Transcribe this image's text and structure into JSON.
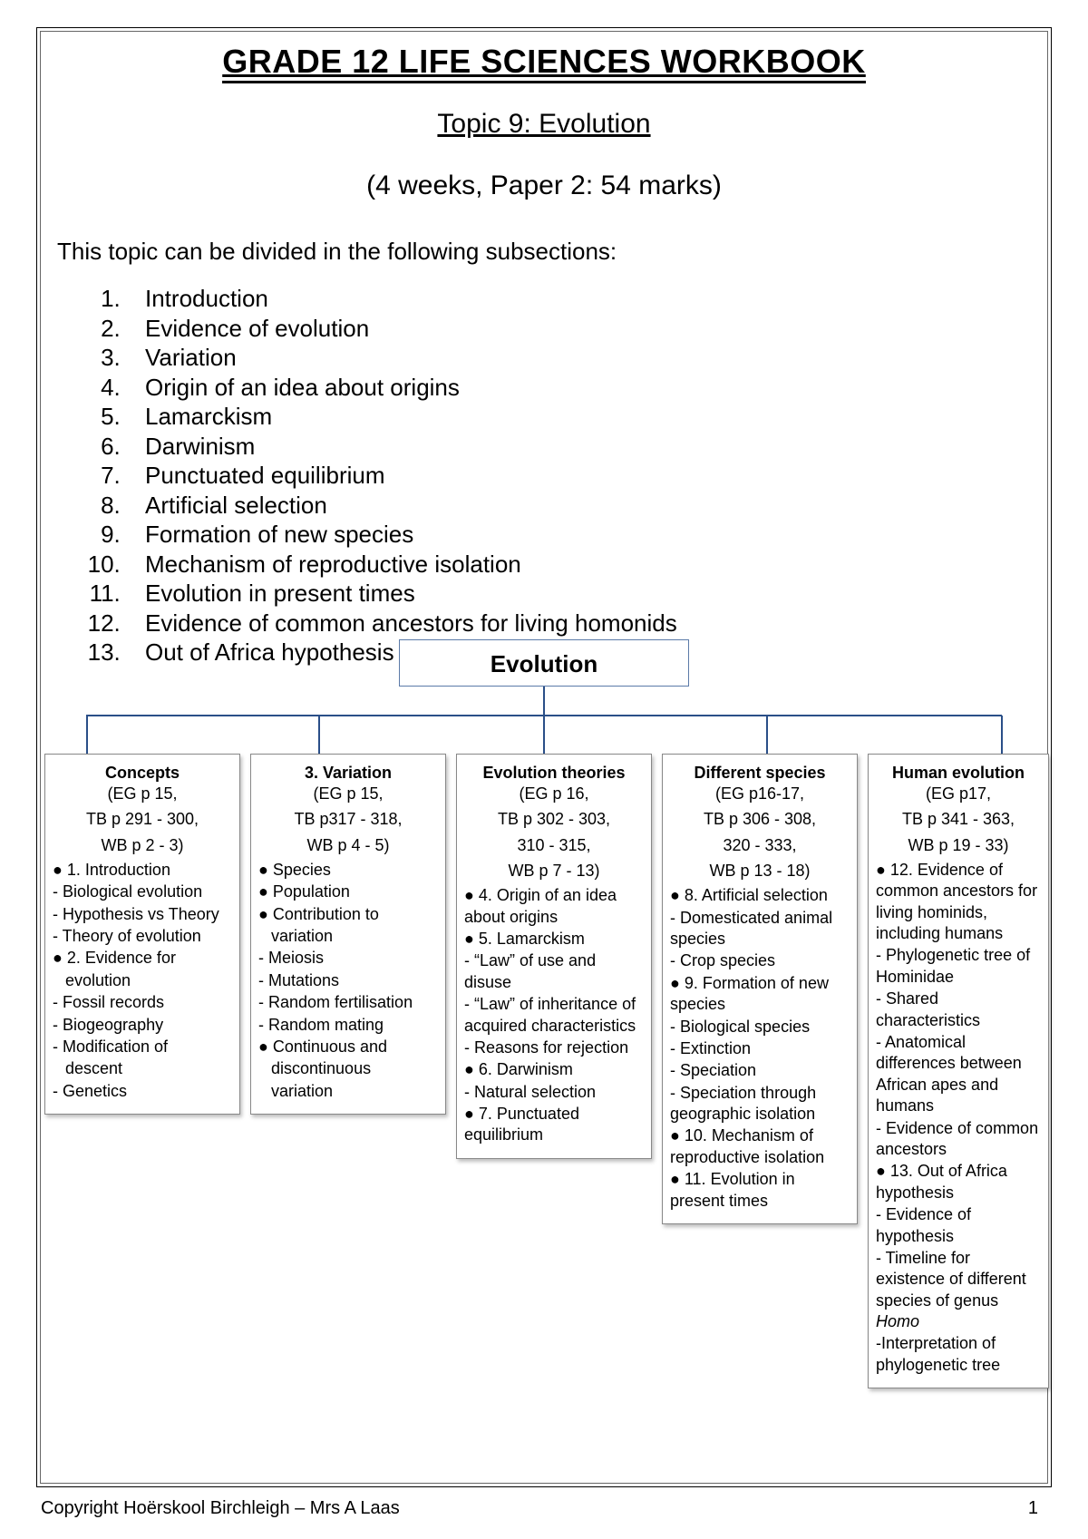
{
  "title": "GRADE 12 LIFE SCIENCES WORKBOOK",
  "topic": "Topic 9: Evolution",
  "duration": "(4 weeks, Paper 2: 54 marks)",
  "intro": "This topic can be divided in the following subsections:",
  "subsections": [
    "Introduction",
    "Evidence of evolution",
    "Variation",
    "Origin of an idea about origins",
    "Lamarckism",
    "Darwinism",
    "Punctuated equilibrium",
    "Artificial selection",
    "Formation of new species",
    "Mechanism of reproductive isolation",
    "Evolution in present times",
    "Evidence of common ancestors for living homonids",
    "Out of Africa hypothesis"
  ],
  "tree": {
    "root": "Evolution",
    "cards": [
      {
        "title": "Concepts",
        "refs": [
          "(EG p 15,",
          "TB p 291 - 300,",
          "WB p 2 - 3)"
        ],
        "items": [
          {
            "t": "bul",
            "text": "1. Introduction"
          },
          {
            "t": "dash",
            "text": "Biological evolution"
          },
          {
            "t": "dash",
            "text": "Hypothesis vs Theory"
          },
          {
            "t": "dash",
            "text": "Theory of evolution"
          },
          {
            "t": "bul",
            "text": "2. Evidence for"
          },
          {
            "t": "plain",
            "text": "evolution",
            "indent": true
          },
          {
            "t": "dash",
            "text": "Fossil records"
          },
          {
            "t": "dash",
            "text": "Biogeography"
          },
          {
            "t": "dash",
            "text": "Modification of"
          },
          {
            "t": "plain",
            "text": "descent",
            "indent": true
          },
          {
            "t": "dash",
            "text": "Genetics"
          }
        ]
      },
      {
        "title": "3. Variation",
        "refs": [
          "(EG p 15,",
          "TB p317 - 318,",
          "WB p 4 - 5)"
        ],
        "items": [
          {
            "t": "bul",
            "text": "Species"
          },
          {
            "t": "bul",
            "text": "Population"
          },
          {
            "t": "bul",
            "text": "Contribution to"
          },
          {
            "t": "plain",
            "text": "variation",
            "indent": true
          },
          {
            "t": "dash",
            "text": "Meiosis"
          },
          {
            "t": "dash",
            "text": "Mutations"
          },
          {
            "t": "dash",
            "text": "Random fertilisation"
          },
          {
            "t": "dash",
            "text": "Random mating"
          },
          {
            "t": "bul",
            "text": "Continuous and"
          },
          {
            "t": "plain",
            "text": "discontinuous",
            "indent": true
          },
          {
            "t": "plain",
            "text": "variation",
            "indent": true
          }
        ]
      },
      {
        "title": "Evolution theories",
        "refs": [
          "(EG p 16,",
          "TB p 302 - 303,",
          "310 - 315,",
          "WB p 7 - 13)"
        ],
        "items": [
          {
            "t": "bul",
            "text": "4. Origin of an idea about origins"
          },
          {
            "t": "bul",
            "text": "5. Lamarckism"
          },
          {
            "t": "dash",
            "text": "“Law” of use and disuse"
          },
          {
            "t": "dash",
            "text": "“Law” of inheritance of acquired characteristics"
          },
          {
            "t": "dash",
            "text": "Reasons for rejection"
          },
          {
            "t": "bul",
            "text": "6. Darwinism"
          },
          {
            "t": "dash",
            "text": "Natural selection"
          },
          {
            "t": "bul",
            "text": "7. Punctuated equilibrium"
          }
        ]
      },
      {
        "title": "Different species",
        "refs": [
          "(EG p16-17,",
          "TB p 306 - 308,",
          "320 - 333,",
          "WB p 13 - 18)"
        ],
        "items": [
          {
            "t": "bul",
            "text": "8. Artificial selection"
          },
          {
            "t": "dash",
            "text": "Domesticated animal species"
          },
          {
            "t": "dash",
            "text": "Crop species"
          },
          {
            "t": "bul",
            "text": "9. Formation of new species"
          },
          {
            "t": "dash",
            "text": "Biological species"
          },
          {
            "t": "dash",
            "text": "Extinction"
          },
          {
            "t": "dash",
            "text": "Speciation"
          },
          {
            "t": "dash",
            "text": "Speciation through geographic isolation"
          },
          {
            "t": "bul",
            "text": "10. Mechanism of reproductive isolation"
          },
          {
            "t": "bul",
            "text": "11. Evolution in present times"
          }
        ]
      },
      {
        "title": "Human evolution",
        "refs": [
          "(EG p17,",
          "TB p 341 - 363,",
          "WB p 19 - 33)"
        ],
        "items": [
          {
            "t": "bul",
            "text": "12. Evidence of common ancestors for living hominids, including humans"
          },
          {
            "t": "dash",
            "text": "Phylogenetic tree of Hominidae"
          },
          {
            "t": "dash",
            "text": "Shared characteristics"
          },
          {
            "t": "dash",
            "text": "Anatomical differences between African apes and humans"
          },
          {
            "t": "dash",
            "text": "Evidence of common ancestors"
          },
          {
            "t": "bul",
            "text": "13. Out of Africa hypothesis"
          },
          {
            "t": "dash",
            "text": "Evidence of hypothesis"
          },
          {
            "t": "dash",
            "text": "Timeline for existence of different species of genus ",
            "italicTail": "Homo"
          },
          {
            "t": "dashplain",
            "text": "-Interpretation of phylogenetic tree"
          }
        ]
      }
    ]
  },
  "footer": {
    "copyright": "Copyright Hoërskool Birchleigh – Mrs A Laas",
    "page": "1"
  },
  "colors": {
    "text": "#000000",
    "tree_line": "#2a4f88",
    "card_border": "#888888",
    "root_border": "#5b7aa8"
  }
}
